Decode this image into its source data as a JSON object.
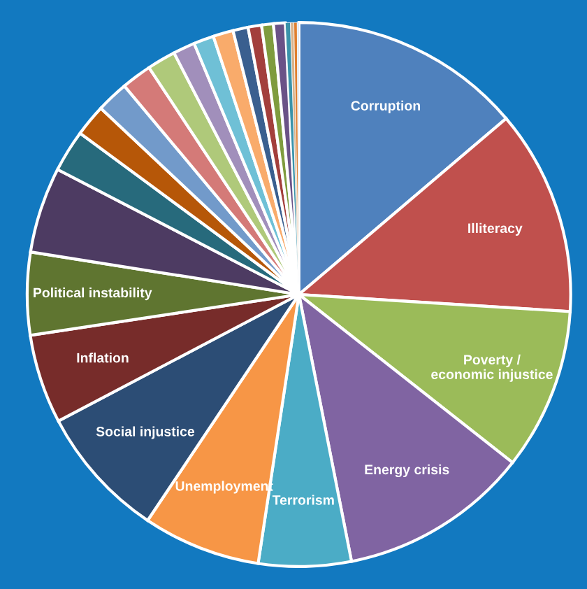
{
  "chart_data": {
    "type": "pie",
    "categories": [
      "Corruption",
      "Illiteracy",
      "Poverty /\neconomic injustice",
      "Energy crisis",
      "Terrorism",
      "Unemployment",
      "Social injustice",
      "Inflation",
      "Political instability",
      null,
      null,
      null,
      null,
      null,
      null,
      null,
      null,
      null,
      null,
      null,
      null,
      null,
      null,
      null,
      null,
      null
    ],
    "values": [
      13.8,
      12.2,
      9.6,
      11.3,
      5.5,
      7.0,
      7.9,
      5.3,
      4.9,
      5.1,
      2.5,
      1.9,
      1.9,
      1.8,
      1.7,
      1.3,
      1.2,
      1.2,
      0.9,
      0.8,
      0.7,
      0.7,
      0.3,
      0.2,
      0.2,
      0.1
    ],
    "colors": [
      "#4f81bd",
      "#c0504d",
      "#9bbb59",
      "#8064a2",
      "#4bacc6",
      "#f79646",
      "#2c4d75",
      "#772c2a",
      "#5f7530",
      "#4d3b62",
      "#276a7c",
      "#b65708",
      "#729aca",
      "#d47a78",
      "#afc97a",
      "#a18fbb",
      "#6fc0d6",
      "#f9ab6b",
      "#3a5f8f",
      "#a33f3c",
      "#7f9c3e",
      "#6a5287",
      "#3a93aa",
      "#d9b38c",
      "#e08030",
      "#c9d7ea"
    ]
  }
}
